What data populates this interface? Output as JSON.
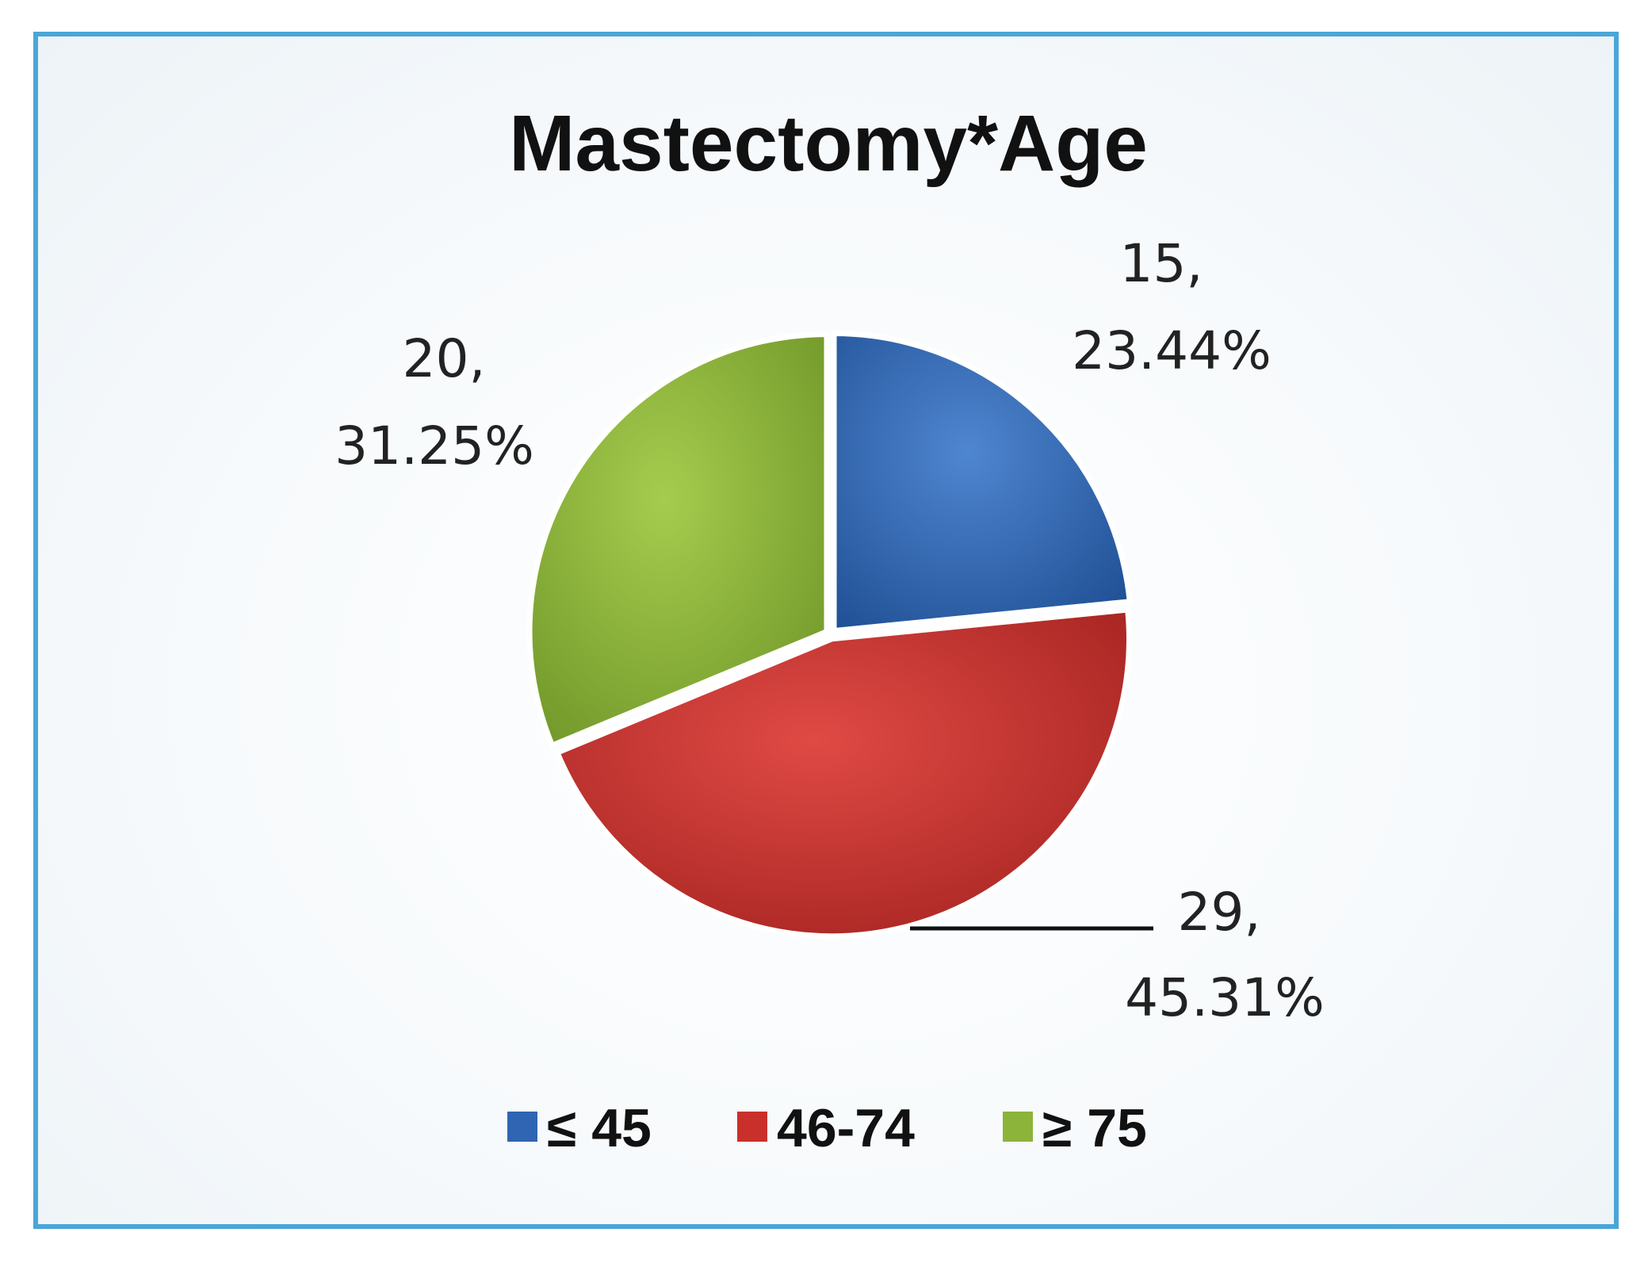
{
  "chart_data": {
    "type": "pie",
    "title": "Mastectomy*Age",
    "categories": [
      "≤ 45",
      "46-74",
      "≥ 75"
    ],
    "values": [
      15,
      29,
      20
    ],
    "percent_labels": [
      "23.44%",
      "45.31%",
      "31.25%"
    ],
    "data_labels": [
      {
        "count": "15,",
        "percent": "23.44%"
      },
      {
        "count": "29,",
        "percent": "45.31%"
      },
      {
        "count": "20,",
        "percent": "31.25%"
      }
    ],
    "colors": [
      "#2f65b2",
      "#c9302c",
      "#8cb33a"
    ],
    "legend": {
      "position": "bottom",
      "items": [
        "≤ 45",
        "46-74",
        "≥ 75"
      ]
    },
    "border_color": "#4aa6d8"
  }
}
